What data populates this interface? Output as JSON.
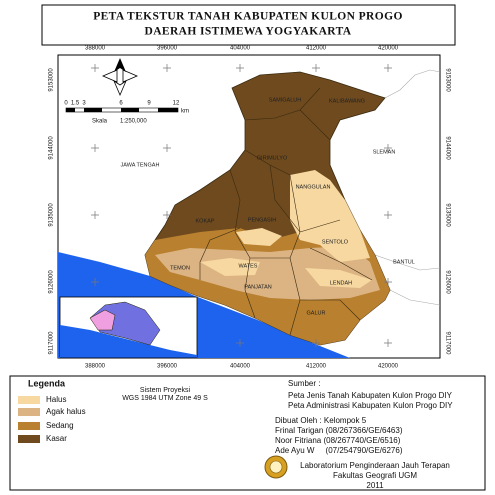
{
  "title": [
    "PETA TEKSTUR TANAH KABUPATEN KULON PROGO",
    "DAERAH ISTIMEWA YOGYAKARTA"
  ],
  "map": {
    "x_labels": [
      388000,
      396000,
      404000,
      412000,
      420000
    ],
    "y_labels": [
      9153000,
      9144000,
      9135000,
      9126000,
      9117000
    ],
    "places": [
      "SAMIGALUH",
      "KALIBAWANG",
      "GIRIMULYO",
      "NANGGULAN",
      "SLEMAN",
      "JAWA TENGAH",
      "KOKAP",
      "PENGASIH",
      "SENTOLO",
      "BANTUL",
      "TEMON",
      "WATES",
      "PANJATAN",
      "LENDAH",
      "GALUR"
    ],
    "scale": {
      "ticks": [
        "0",
        "1.5",
        "3",
        "6",
        "9",
        "12"
      ],
      "unit": "km",
      "label": "Skala",
      "ratio": "1:250,000"
    }
  },
  "legend": {
    "title": "Legenda",
    "items": [
      "Halus",
      "Agak halus",
      "Sedang",
      "Kasar"
    ]
  },
  "projection": [
    "Sistem Proyeksi",
    "WGS 1984 UTM Zone 49 S"
  ],
  "source": [
    "Sumber :",
    "Peta Jenis Tanah Kabupaten Kulon Progo DIY",
    "Peta Administrasi Kabupaten Kulon Progo DIY"
  ],
  "made_by": [
    "Dibuat Oleh : Kelompok 5",
    "Frinal Tarigan  (08/267366/GE/6463)",
    "Noor Fitriana  (08/267740/GE/6516)",
    "Ade Ayu W     (07/254790/GE/6276)"
  ],
  "lab": [
    "Laboratorium Penginderaan Jauh Terapan",
    "Fakultas Geografi UGM",
    "2011"
  ]
}
